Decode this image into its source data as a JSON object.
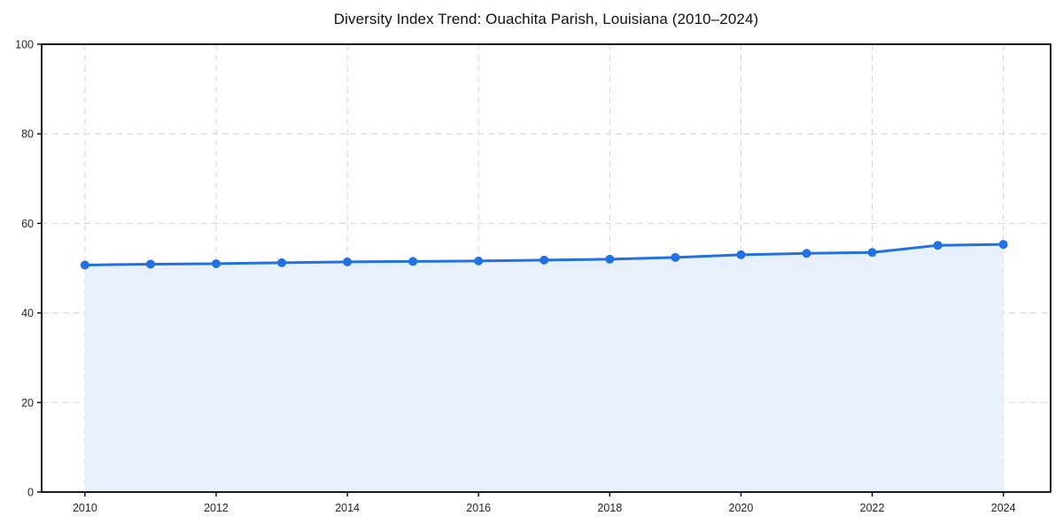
{
  "chart_data": {
    "type": "area",
    "title": "Diversity Index Trend: Ouachita Parish, Louisiana (2010–2024)",
    "xlabel": "",
    "ylabel": "",
    "x": [
      2010,
      2011,
      2012,
      2013,
      2014,
      2015,
      2016,
      2017,
      2018,
      2019,
      2020,
      2021,
      2022,
      2023,
      2024
    ],
    "series": [
      {
        "name": "Diversity Index",
        "values": [
          50.7,
          50.9,
          51.0,
          51.2,
          51.4,
          51.5,
          51.6,
          51.8,
          52.0,
          52.4,
          53.0,
          53.3,
          53.5,
          55.1,
          55.3
        ]
      }
    ],
    "xlim": [
      2009.34,
      2024.72
    ],
    "ylim": [
      0,
      100
    ],
    "xticks": [
      2010,
      2012,
      2014,
      2016,
      2018,
      2020,
      2022,
      2024
    ],
    "yticks": [
      0,
      20,
      40,
      60,
      80,
      100
    ],
    "grid": true,
    "grid_style": "dashed",
    "legend_position": "none",
    "marker": "circle",
    "colors": {
      "line": "#2171e3",
      "marker": "#2171e3",
      "fill": "#e8f0fb",
      "grid": "#d4d4d4",
      "axis": "#000000",
      "text": "#262626",
      "background": "#ffffff"
    }
  }
}
